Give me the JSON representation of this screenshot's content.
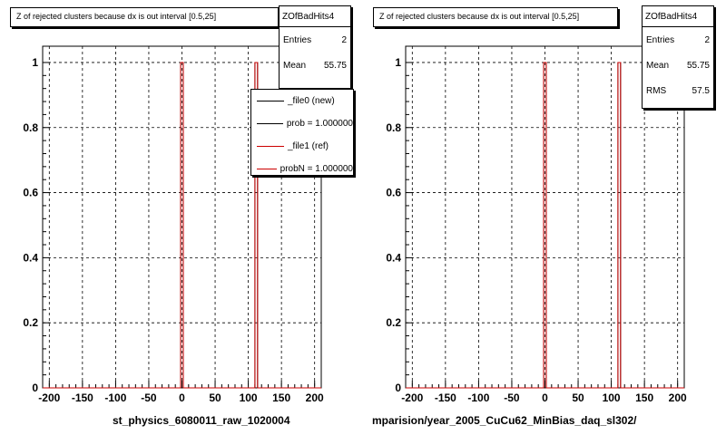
{
  "left_pad": {
    "title": "Z of rejected clusters  because dx is out interval  [0.5,25]",
    "stats": {
      "name": "ZOfBadHits4",
      "rows": [
        {
          "label": "Entries",
          "value": "2"
        },
        {
          "label": "Mean",
          "value": "55.75"
        }
      ]
    },
    "legend": [
      {
        "label": "_file0 (new)",
        "color": "#000000"
      },
      {
        "label": "prob = 1.000000",
        "color": "#000000"
      },
      {
        "label": "_file1 (ref)",
        "color": "#cc0000"
      },
      {
        "label": "probN = 1.000000",
        "color": "#cc0000"
      }
    ],
    "xtitle": "st_physics_6080011_raw_1020004"
  },
  "right_pad": {
    "title": "Z of rejected clusters  because dx is out interval  [0.5,25]",
    "stats": {
      "name": "ZOfBadHits4",
      "rows": [
        {
          "label": "Entries",
          "value": "2"
        },
        {
          "label": "Mean",
          "value": "55.75"
        },
        {
          "label": "RMS",
          "value": "57.5"
        }
      ]
    },
    "xtitle": "mparision/year_2005_CuCu62_MinBias_daq_sl302/"
  },
  "footer_text": "",
  "chart_data": [
    {
      "type": "bar",
      "xlim": [
        -210,
        210
      ],
      "ylim": [
        0,
        1.05
      ],
      "xticks": [
        "-200",
        "-150",
        "-100",
        "-50",
        "0",
        "50",
        "100",
        "150",
        "200"
      ],
      "yticks": [
        "0",
        "0.2",
        "0.4",
        "0.6",
        "0.8",
        "1"
      ],
      "grid": true,
      "legend_position": "top-right",
      "series": [
        {
          "name": "_file0 (new)",
          "color": "#000000",
          "bins": [
            {
              "x": [
                -2,
                2
              ],
              "y": 1
            },
            {
              "x": [
                110,
                114
              ],
              "y": 1
            }
          ]
        },
        {
          "name": "_file1 (ref)",
          "color": "#cc0000",
          "bins": [
            {
              "x": [
                -2,
                2
              ],
              "y": 1
            },
            {
              "x": [
                110,
                114
              ],
              "y": 1
            }
          ]
        }
      ]
    },
    {
      "type": "bar",
      "xlim": [
        -210,
        210
      ],
      "ylim": [
        0,
        1.05
      ],
      "xticks": [
        "-200",
        "-150",
        "-100",
        "-50",
        "0",
        "50",
        "100",
        "150",
        "200"
      ],
      "yticks": [
        "0",
        "0.2",
        "0.4",
        "0.6",
        "0.8",
        "1"
      ],
      "grid": true,
      "series": [
        {
          "color": "#000000",
          "bins": [
            {
              "x": [
                -2,
                2
              ],
              "y": 1
            },
            {
              "x": [
                110,
                114
              ],
              "y": 1
            }
          ]
        },
        {
          "color": "#cc0000",
          "bins": [
            {
              "x": [
                -2,
                2
              ],
              "y": 1
            },
            {
              "x": [
                110,
                114
              ],
              "y": 1
            }
          ]
        }
      ]
    }
  ]
}
